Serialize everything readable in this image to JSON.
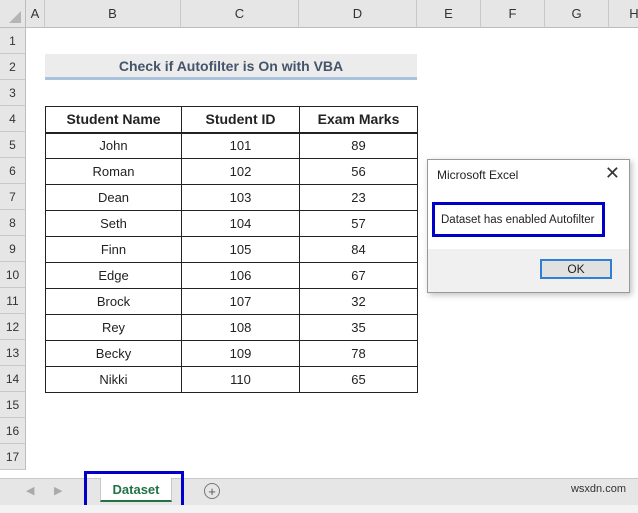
{
  "columns": [
    "A",
    "B",
    "C",
    "D",
    "E",
    "F",
    "G",
    "H"
  ],
  "rows": [
    "1",
    "2",
    "3",
    "4",
    "5",
    "6",
    "7",
    "8",
    "9",
    "10",
    "11",
    "12",
    "13",
    "14",
    "15",
    "16",
    "17"
  ],
  "title": "Check if Autofilter is On with VBA",
  "table": {
    "headers": [
      "Student Name",
      "Student ID",
      "Exam Marks"
    ],
    "rows": [
      [
        "John",
        "101",
        "89"
      ],
      [
        "Roman",
        "102",
        "56"
      ],
      [
        "Dean",
        "103",
        "23"
      ],
      [
        "Seth",
        "104",
        "57"
      ],
      [
        "Finn",
        "105",
        "84"
      ],
      [
        "Edge",
        "106",
        "67"
      ],
      [
        "Brock",
        "107",
        "32"
      ],
      [
        "Rey",
        "108",
        "35"
      ],
      [
        "Becky",
        "109",
        "78"
      ],
      [
        "Nikki",
        "110",
        "65"
      ]
    ]
  },
  "dialog": {
    "title": "Microsoft Excel",
    "message": "Dataset has enabled Autofilter",
    "ok": "OK",
    "close": "✕"
  },
  "sheet_tab": "Dataset",
  "add_sheet": "+",
  "watermark": "wsxdn.com",
  "colors": {
    "highlight": "#0000c8",
    "tab_green": "#217346",
    "title_text": "#44546a"
  }
}
